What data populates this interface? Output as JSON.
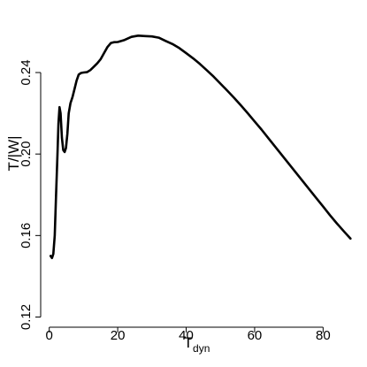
{
  "chart_data": {
    "type": "line",
    "title": "",
    "xlabel": "T",
    "xlabel_subscript": "dyn",
    "ylabel": "T/|W|",
    "xlim": [
      -2.5,
      90.5
    ],
    "ylim": [
      0.115,
      0.273
    ],
    "xticks": [
      0,
      20,
      40,
      60,
      80
    ],
    "yticks": [
      0.12,
      0.16,
      0.2,
      0.24
    ],
    "xtick_labels": [
      "0",
      "20",
      "40",
      "60",
      "80"
    ],
    "ytick_labels": [
      "0.12",
      "0.16",
      "0.20",
      "0.24"
    ],
    "grid": false,
    "line_color": "#000000",
    "series": [
      {
        "name": "",
        "x": [
          0.4,
          0.8,
          1.2,
          1.6,
          2.0,
          2.4,
          2.7,
          3.0,
          3.3,
          3.7,
          4.1,
          4.5,
          4.9,
          5.3,
          5.7,
          6.2,
          6.8,
          7.4,
          8.0,
          8.6,
          9.3,
          10.0,
          11.0,
          12.0,
          13.0,
          14.0,
          15.0,
          16.0,
          17.0,
          18.0,
          19.0,
          20.0,
          22.0,
          24.0,
          26.0,
          28.0,
          30.0,
          32.0,
          34.0,
          36.0,
          38.0,
          40.0,
          42.0,
          44.0,
          46.0,
          48.0,
          50.0,
          52.0,
          54.0,
          56.0,
          58.0,
          60.0,
          62.0,
          64.0,
          66.0,
          68.0,
          70.0,
          72.0,
          74.0,
          76.0,
          78.0,
          80.0,
          82.0,
          84.0,
          86.0,
          88.0
        ],
        "y": [
          0.15,
          0.149,
          0.151,
          0.16,
          0.18,
          0.2,
          0.215,
          0.223,
          0.22,
          0.208,
          0.202,
          0.201,
          0.203,
          0.21,
          0.22,
          0.225,
          0.228,
          0.232,
          0.236,
          0.239,
          0.2398,
          0.24,
          0.2402,
          0.2412,
          0.2428,
          0.2445,
          0.2465,
          0.2495,
          0.2525,
          0.2545,
          0.2549,
          0.255,
          0.256,
          0.2575,
          0.2581,
          0.2579,
          0.2577,
          0.2571,
          0.2555,
          0.254,
          0.252,
          0.2495,
          0.247,
          0.2442,
          0.2412,
          0.238,
          0.2346,
          0.2311,
          0.2276,
          0.2238,
          0.22,
          0.216,
          0.212,
          0.2078,
          0.2036,
          0.1994,
          0.1952,
          0.191,
          0.1868,
          0.1826,
          0.1784,
          0.1742,
          0.17,
          0.166,
          0.1622,
          0.1585
        ]
      }
    ]
  }
}
